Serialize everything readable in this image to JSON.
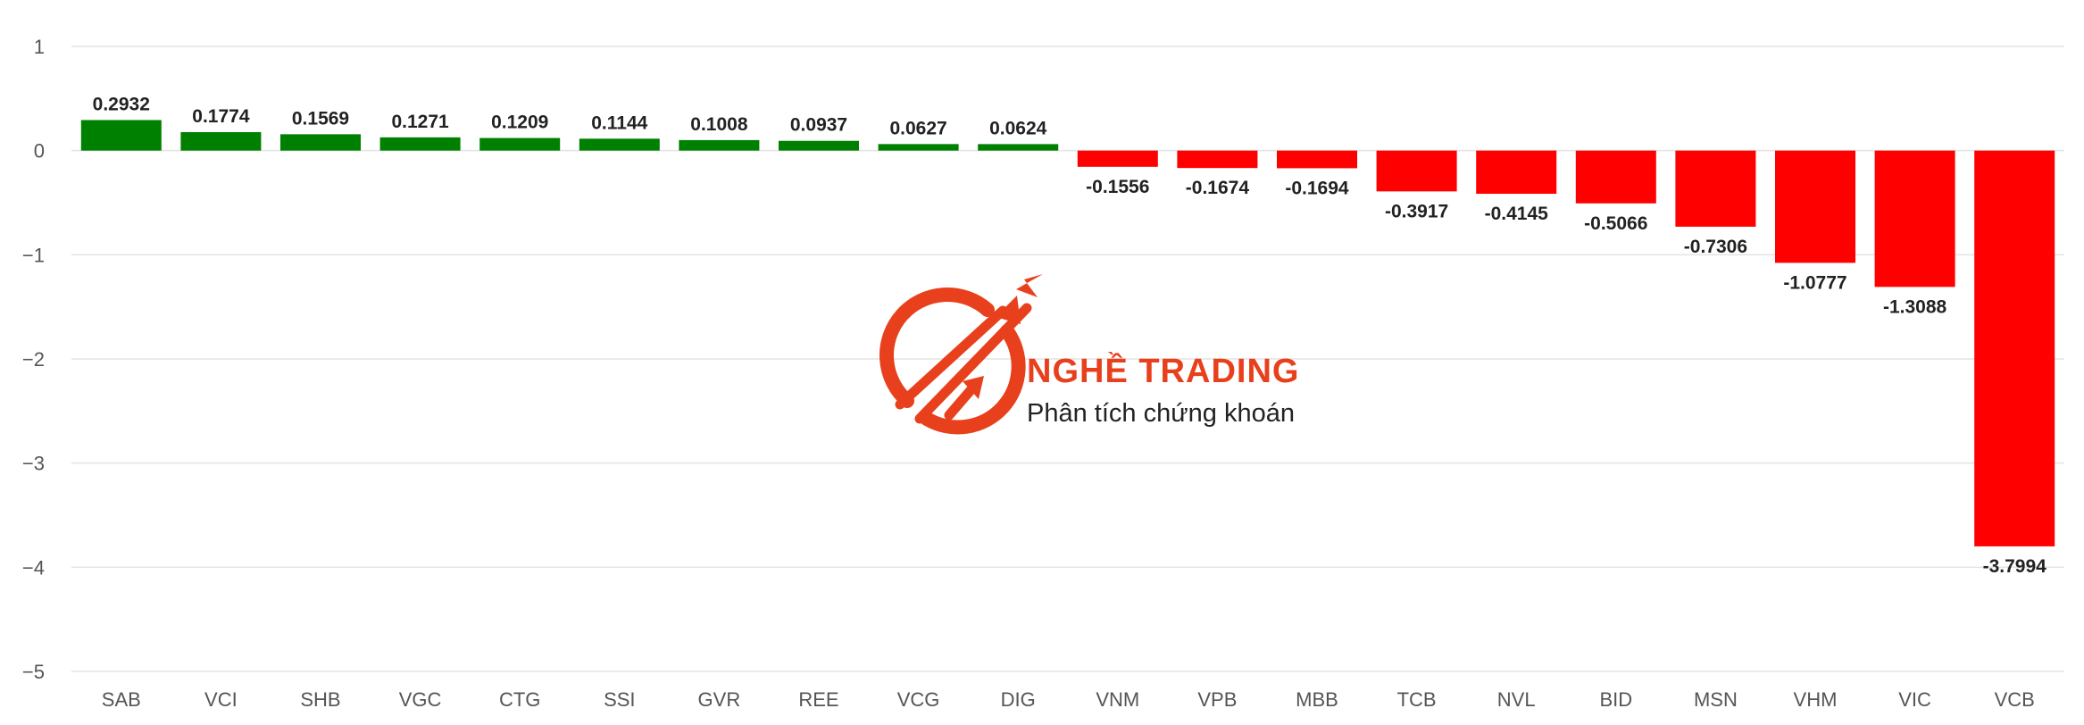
{
  "chart_data": {
    "type": "bar",
    "title": "",
    "xlabel": "",
    "ylabel": "",
    "ylim": [
      -5,
      1
    ],
    "y_ticks": [
      1,
      0,
      -1,
      -2,
      -3,
      -4,
      -5
    ],
    "grid": true,
    "categories": [
      "SAB",
      "VCI",
      "SHB",
      "VGC",
      "CTG",
      "SSI",
      "GVR",
      "REE",
      "VCG",
      "DIG",
      "VNM",
      "VPB",
      "MBB",
      "TCB",
      "NVL",
      "BID",
      "MSN",
      "VHM",
      "VIC",
      "VCB"
    ],
    "values": [
      0.2932,
      0.1774,
      0.1569,
      0.1271,
      0.1209,
      0.1144,
      0.1008,
      0.0937,
      0.0627,
      0.0624,
      -0.1556,
      -0.1674,
      -0.1694,
      -0.3917,
      -0.4145,
      -0.5066,
      -0.7306,
      -1.0777,
      -1.3088,
      -3.7994
    ],
    "value_labels": [
      "0.2932",
      "0.1774",
      "0.1569",
      "0.1271",
      "0.1209",
      "0.1144",
      "0.1008",
      "0.0937",
      "0.0627",
      "0.0624",
      "-0.1556",
      "-0.1674",
      "-0.1694",
      "-0.3917",
      "-0.4145",
      "-0.5066",
      "-0.7306",
      "-1.0777",
      "-1.3088",
      "-3.7994"
    ],
    "colors": {
      "positive": "#008000",
      "negative": "#ff0000"
    }
  },
  "watermark": {
    "brand_name": "NGHỀ TRADING",
    "tagline": "Phân tích chứng khoán",
    "brand_color": "#e8401c",
    "icon": "trading-arrows-logo-icon"
  }
}
